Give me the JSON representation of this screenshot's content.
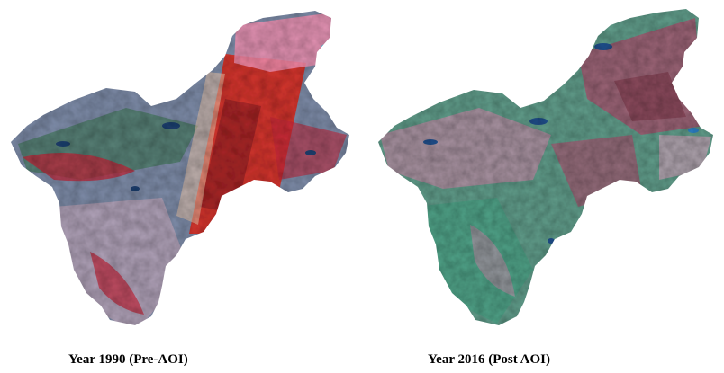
{
  "panels": [
    {
      "caption": "Year 1990 (Pre-AOI)",
      "palette": {
        "base": "#7c8aa6",
        "soil": "#b8a3b8",
        "veg": "#c0273a",
        "vegDark": "#8a1c22",
        "green": "#4f7a6a",
        "water": "#1d3f6e",
        "swath": "#d92a20",
        "haze": "#f08fb0"
      }
    },
    {
      "caption": "Year 2016 (Post AOI)",
      "palette": {
        "base": "#5f9a88",
        "soil": "#b98aa3",
        "veg": "#b04a6c",
        "vegDark": "#7a3346",
        "green": "#4aa085",
        "water": "#1f4e8a",
        "swath": "#c25b7d",
        "haze": "#c9a0b6"
      }
    }
  ]
}
